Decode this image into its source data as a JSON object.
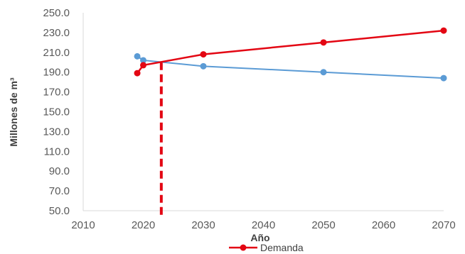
{
  "chart_data": {
    "type": "line",
    "xlabel": "Año",
    "ylabel": "Millones de m³",
    "xlim": [
      2010,
      2070
    ],
    "ylim": [
      50,
      250
    ],
    "x_ticks": [
      "2010",
      "2020",
      "2030",
      "2040",
      "2050",
      "2060",
      "2070"
    ],
    "y_ticks": [
      "50.0",
      "70.0",
      "90.0",
      "110.0",
      "130.0",
      "150.0",
      "170.0",
      "190.0",
      "210.0",
      "230.0",
      "250.0"
    ],
    "grid": false,
    "legend_position": "bottom",
    "series": [
      {
        "name": "",
        "color": "#5b9bd5",
        "x": [
          2019,
          2020,
          2030,
          2050,
          2070
        ],
        "y": [
          206,
          202,
          196,
          190,
          184
        ]
      },
      {
        "name": "Demanda",
        "color": "#e30613",
        "x": [
          2019,
          2020,
          2030,
          2050,
          2070
        ],
        "y": [
          189,
          197,
          208,
          220,
          232
        ]
      }
    ],
    "annotations": [
      {
        "type": "vertical-dashed-line",
        "x": 2023,
        "color": "#e30613"
      }
    ]
  }
}
